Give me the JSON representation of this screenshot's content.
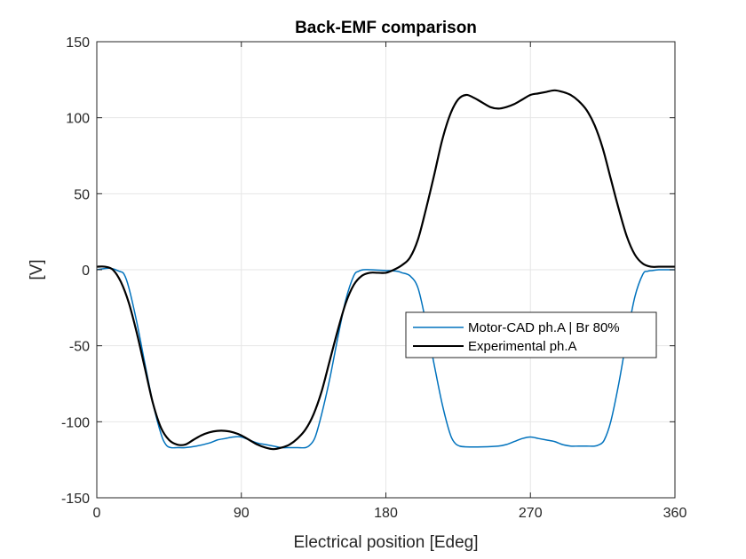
{
  "chart_data": {
    "type": "line",
    "title": "Back-EMF comparison",
    "xlabel": "Electrical position [Edeg]",
    "ylabel": "[V]",
    "xlim": [
      0,
      360
    ],
    "ylim": [
      -150,
      150
    ],
    "xticks": [
      0,
      90,
      180,
      270,
      360
    ],
    "yticks": [
      -150,
      -100,
      -50,
      0,
      50,
      100,
      150
    ],
    "xtick_labels": [
      "0",
      "90",
      "180",
      "270",
      "360"
    ],
    "ytick_labels": [
      "-150",
      "-100",
      "-50",
      "0",
      "50",
      "100",
      "150"
    ],
    "grid": true,
    "legend_position": "center-right",
    "series": [
      {
        "name": "Motor-CAD ph.A | Br 80%",
        "color": "#0072BD",
        "x": [
          0,
          8,
          14,
          17,
          20,
          25,
          30,
          35,
          40,
          43,
          46,
          50,
          55,
          62,
          70,
          75,
          80,
          85,
          90,
          95,
          100,
          105,
          110,
          115,
          120,
          125,
          130,
          133,
          136,
          140,
          145,
          150,
          155,
          160,
          163,
          166,
          170,
          180,
          187,
          190,
          195,
          200,
          205,
          210,
          215,
          220,
          223,
          226,
          230,
          240,
          250,
          255,
          260,
          265,
          270,
          275,
          280,
          285,
          290,
          295,
          300,
          305,
          310,
          313,
          316,
          320,
          325,
          330,
          335,
          340,
          343,
          346,
          350,
          360
        ],
        "y": [
          0,
          1,
          -1,
          -3,
          -12,
          -35,
          -62,
          -88,
          -108,
          -115,
          -117,
          -117,
          -117,
          -116,
          -114,
          -112,
          -111,
          -110,
          -110,
          -112,
          -114,
          -115,
          -116,
          -117,
          -117,
          -117,
          -117,
          -115,
          -110,
          -95,
          -72,
          -45,
          -20,
          -4,
          -1,
          0,
          0,
          -0.5,
          -1,
          -2,
          -4,
          -12,
          -35,
          -62,
          -88,
          -108,
          -114,
          -116,
          -116.5,
          -116.5,
          -116,
          -115,
          -113,
          -111,
          -110,
          -111,
          -112,
          -113,
          -115,
          -116,
          -116,
          -116,
          -116,
          -115,
          -112,
          -100,
          -75,
          -45,
          -18,
          -3,
          -1,
          -0.5,
          0,
          0
        ]
      },
      {
        "name": "Experimental ph.A",
        "color": "#000000",
        "x": [
          0,
          5,
          10,
          15,
          20,
          25,
          30,
          35,
          40,
          45,
          50,
          55,
          60,
          65,
          70,
          75,
          80,
          85,
          90,
          95,
          100,
          105,
          110,
          115,
          120,
          125,
          130,
          135,
          140,
          145,
          150,
          155,
          160,
          165,
          170,
          175,
          180,
          185,
          190,
          195,
          200,
          205,
          210,
          215,
          220,
          225,
          230,
          235,
          240,
          245,
          250,
          255,
          260,
          265,
          270,
          275,
          280,
          285,
          290,
          295,
          300,
          305,
          310,
          315,
          320,
          325,
          330,
          335,
          340,
          345,
          350,
          355,
          360
        ],
        "y": [
          2,
          2,
          0,
          -8,
          -22,
          -42,
          -65,
          -88,
          -104,
          -112,
          -115,
          -115,
          -112,
          -109,
          -107,
          -106,
          -106,
          -107,
          -109,
          -112,
          -115,
          -117,
          -118,
          -117,
          -115,
          -111,
          -105,
          -95,
          -80,
          -60,
          -40,
          -22,
          -10,
          -4,
          -2,
          -2,
          -2,
          0,
          3,
          8,
          20,
          40,
          62,
          85,
          102,
          112,
          115,
          113,
          110,
          107,
          106,
          107,
          109,
          112,
          115,
          116,
          117,
          118,
          117,
          115,
          111,
          105,
          95,
          80,
          60,
          40,
          22,
          10,
          4,
          2,
          2,
          2,
          2
        ]
      }
    ]
  }
}
